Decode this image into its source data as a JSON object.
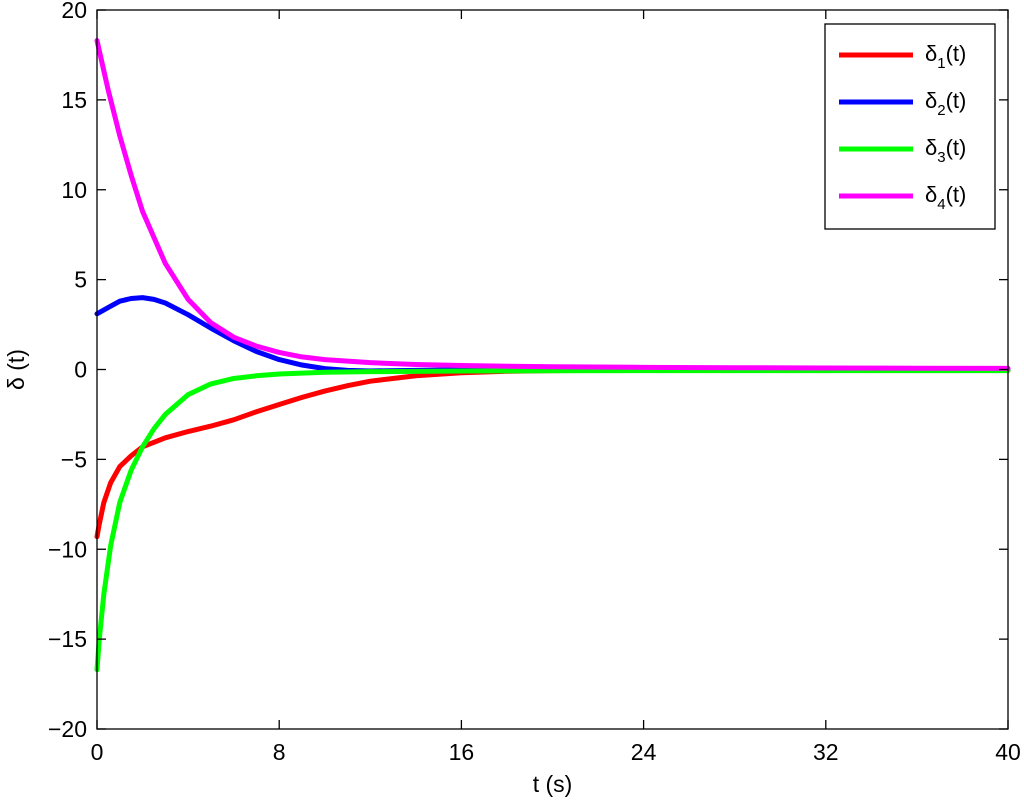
{
  "chart_data": {
    "type": "line",
    "title": "",
    "xlabel": "t (s)",
    "ylabel": "δ (t)",
    "xlim": [
      0,
      40
    ],
    "ylim": [
      -20,
      20
    ],
    "xticks": [
      0,
      8,
      16,
      24,
      32,
      40
    ],
    "yticks": [
      -20,
      -15,
      -10,
      -5,
      0,
      5,
      10,
      15,
      20
    ],
    "ytick_labels": [
      "−20",
      "−15",
      "−10",
      "−5",
      "0",
      "5",
      "10",
      "15",
      "20"
    ],
    "grid": false,
    "legend_position": "top-right",
    "series": [
      {
        "name": "δ1(t)",
        "label_main": "δ",
        "label_sub": "1",
        "label_tail": "(t)",
        "color": "#ff0000",
        "x": [
          0,
          0.1,
          0.3,
          0.6,
          1,
          1.5,
          2,
          3,
          4,
          5,
          6,
          7,
          8,
          9,
          10,
          11,
          12,
          14,
          16,
          18,
          20,
          24,
          28,
          32,
          36,
          40
        ],
        "y": [
          -9.3,
          -8.6,
          -7.4,
          -6.3,
          -5.4,
          -4.8,
          -4.3,
          -3.8,
          -3.45,
          -3.15,
          -2.8,
          -2.35,
          -1.95,
          -1.55,
          -1.2,
          -0.9,
          -0.65,
          -0.35,
          -0.18,
          -0.1,
          -0.06,
          -0.03,
          -0.02,
          -0.02,
          -0.02,
          -0.02
        ]
      },
      {
        "name": "δ2(t)",
        "label_main": "δ",
        "label_sub": "2",
        "label_tail": "(t)",
        "color": "#0000ff",
        "x": [
          0,
          0.5,
          1,
          1.5,
          2,
          2.5,
          3,
          4,
          5,
          6,
          7,
          8,
          9,
          10,
          11,
          12,
          14,
          16,
          20,
          24,
          28,
          32,
          36,
          40
        ],
        "y": [
          3.1,
          3.45,
          3.8,
          3.95,
          4.0,
          3.9,
          3.7,
          3.05,
          2.3,
          1.6,
          1.0,
          0.55,
          0.25,
          0.05,
          -0.05,
          -0.08,
          -0.05,
          -0.02,
          0.0,
          0.0,
          0.0,
          0.0,
          0.0,
          0.0
        ]
      },
      {
        "name": "δ3(t)",
        "label_main": "δ",
        "label_sub": "3",
        "label_tail": "(t)",
        "color": "#00ff00",
        "x": [
          0,
          0.1,
          0.3,
          0.6,
          1,
          1.5,
          2,
          2.5,
          3,
          4,
          5,
          6,
          7,
          8,
          10,
          12,
          16,
          20,
          24,
          28,
          32,
          36,
          40
        ],
        "y": [
          -16.7,
          -15.0,
          -12.5,
          -9.8,
          -7.4,
          -5.6,
          -4.3,
          -3.3,
          -2.5,
          -1.4,
          -0.8,
          -0.5,
          -0.35,
          -0.25,
          -0.15,
          -0.12,
          -0.08,
          -0.07,
          -0.06,
          -0.06,
          -0.06,
          -0.06,
          -0.06
        ]
      },
      {
        "name": "δ4(t)",
        "label_main": "δ",
        "label_sub": "4",
        "label_tail": "(t)",
        "color": "#ff00ff",
        "x": [
          0,
          0.5,
          1,
          1.5,
          2,
          3,
          4,
          5,
          6,
          7,
          8,
          9,
          10,
          12,
          14,
          16,
          20,
          24,
          28,
          32,
          36,
          40
        ],
        "y": [
          18.3,
          15.5,
          13.0,
          10.8,
          8.8,
          5.9,
          3.9,
          2.6,
          1.8,
          1.3,
          0.95,
          0.7,
          0.55,
          0.38,
          0.28,
          0.22,
          0.15,
          0.12,
          0.1,
          0.08,
          0.07,
          0.06
        ]
      }
    ]
  }
}
